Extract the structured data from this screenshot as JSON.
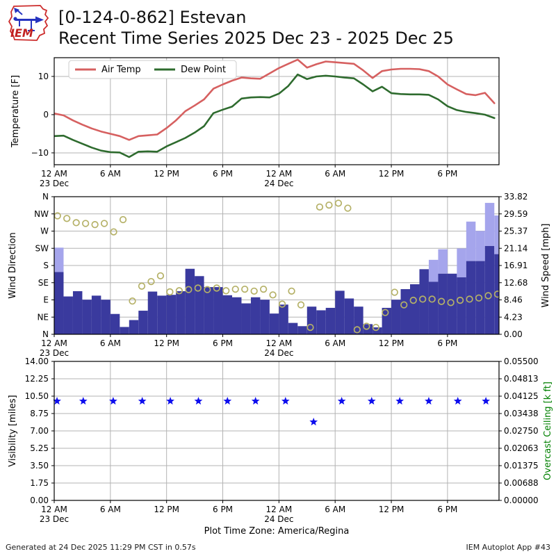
{
  "header": {
    "title_line1": "[0-124-0-862] Estevan",
    "title_line2": "Recent Time Series 2025 Dec 23 - 2025 Dec 25",
    "logo_text": "IEM"
  },
  "meta": {
    "generated": "Generated at 24 Dec 2025 11:29 PM CST in 0.57s",
    "app": "IEM Autoplot App #43"
  },
  "style": {
    "text": "#000000",
    "grid": "#b3b3b3",
    "spine": "#000000",
    "air_temp": "#d66060",
    "dew_point": "#2e6b2e",
    "bar": "#3a3a9e",
    "gust": "#a5a5ec",
    "dir_dot": "#b5b167",
    "star": "#0d0dee",
    "ceiling_label": "#008000",
    "legend_border": "#cccccc"
  },
  "time_axis": {
    "hours_span": 47.5,
    "tick_hours": [
      0,
      6,
      12,
      18,
      24,
      30,
      36,
      42
    ],
    "tick_labels": [
      "12 AM",
      "6 AM",
      "12 PM",
      "6 PM",
      "12 AM",
      "6 AM",
      "12 PM",
      "6 PM"
    ],
    "date_labels": [
      {
        "hour": 0,
        "label": "23 Dec"
      },
      {
        "hour": 24,
        "label": "24 Dec"
      }
    ],
    "xlabel": "Plot Time Zone: America/Regina"
  },
  "chart_data": [
    {
      "type": "line",
      "ylabel": "Temperature [F]",
      "ylim": [
        -13.1,
        14.9
      ],
      "yticks": [
        {
          "v": 10,
          "label": "10"
        },
        {
          "v": 0,
          "label": "0"
        },
        {
          "v": -10,
          "label": "−10"
        }
      ],
      "legend_position": "top-left",
      "series": [
        {
          "name": "Air Temp",
          "color_key": "air_temp",
          "values": [
            0.3,
            -0.2,
            -1.5,
            -2.6,
            -3.6,
            -4.4,
            -5.0,
            -5.6,
            -6.6,
            -5.6,
            -5.4,
            -5.2,
            -3.5,
            -1.5,
            0.9,
            2.4,
            4.0,
            6.8,
            7.9,
            8.9,
            9.7,
            9.5,
            9.4,
            10.8,
            12.2,
            13.3,
            14.4,
            12.3,
            13.2,
            13.9,
            13.7,
            13.5,
            13.3,
            11.6,
            9.6,
            11.4,
            11.8,
            12.0,
            12.0,
            11.9,
            11.4,
            10.0,
            7.9,
            6.6,
            5.4,
            5.1,
            5.7,
            3.0
          ]
        },
        {
          "name": "Dew Point",
          "color_key": "dew_point",
          "values": [
            -5.6,
            -5.5,
            -6.6,
            -7.6,
            -8.6,
            -9.4,
            -9.8,
            -9.9,
            -11.1,
            -9.7,
            -9.6,
            -9.7,
            -8.3,
            -7.2,
            -6.1,
            -4.7,
            -3.0,
            0.4,
            1.3,
            2.1,
            4.2,
            4.5,
            4.6,
            4.5,
            5.5,
            7.5,
            10.5,
            9.3,
            10.0,
            10.2,
            10.0,
            9.7,
            9.5,
            7.9,
            6.1,
            7.3,
            5.6,
            5.4,
            5.3,
            5.3,
            5.2,
            4.0,
            2.2,
            1.2,
            0.7,
            0.4,
            0.0,
            -0.9
          ]
        }
      ]
    },
    {
      "type": "bar",
      "ylabel_left": "Wind Direction",
      "ylabel_right": "Wind Speed [mph]",
      "dir_ticks": [
        "N",
        "NW",
        "W",
        "SW",
        "S",
        "SE",
        "E",
        "NE",
        "N"
      ],
      "speed_ticks": [
        "33.82",
        "29.59",
        "25.37",
        "21.14",
        "16.91",
        "12.68",
        "8.46",
        "4.23",
        "0.00"
      ],
      "speed_max": 33.82,
      "wind_speed_mph": [
        15.3,
        9.3,
        10.6,
        8.5,
        9.5,
        8.5,
        5.0,
        1.8,
        3.5,
        5.8,
        10.5,
        9.5,
        9.7,
        10.6,
        16.1,
        14.3,
        11.6,
        11.6,
        9.6,
        9.1,
        7.6,
        9.1,
        8.5,
        5.1,
        7.3,
        2.8,
        2.0,
        6.8,
        5.9,
        6.5,
        10.7,
        8.8,
        6.8,
        2.5,
        1.7,
        6.5,
        8.5,
        11.1,
        12.3,
        16.0,
        12.9,
        14.9,
        14.9,
        14.0,
        18.0,
        18.0,
        21.7,
        19.7
      ],
      "wind_gust_mph": [
        21.3,
        null,
        null,
        null,
        null,
        null,
        null,
        null,
        null,
        null,
        null,
        null,
        null,
        null,
        null,
        null,
        null,
        null,
        null,
        null,
        null,
        null,
        null,
        null,
        null,
        null,
        null,
        null,
        null,
        null,
        null,
        null,
        null,
        null,
        null,
        null,
        null,
        null,
        null,
        null,
        18.3,
        20.9,
        null,
        21.1,
        27.7,
        25.4,
        32.3,
        29.2
      ],
      "wind_dir_deg": [
        310,
        303,
        292,
        290,
        287,
        290,
        268,
        300,
        87,
        126,
        138,
        153,
        111,
        114,
        117,
        121,
        117,
        121,
        114,
        118,
        118,
        113,
        118,
        103,
        79,
        113,
        77,
        18,
        333,
        338,
        343,
        330,
        12,
        21,
        18,
        57,
        110,
        77,
        89,
        92,
        92,
        86,
        83,
        89,
        92,
        95,
        101,
        105
      ]
    },
    {
      "type": "scatter",
      "ylabel_left": "Visibility [miles]",
      "ylabel_right": "Overcast Ceiling [k ft]",
      "marker": "star",
      "ylim_left": [
        0,
        14
      ],
      "left_ticks": [
        "14.00",
        "12.25",
        "10.50",
        "8.75",
        "7.00",
        "5.25",
        "3.50",
        "1.75",
        "0.00"
      ],
      "right_ticks": [
        "0.05500",
        "0.04813",
        "0.04125",
        "0.03438",
        "0.02750",
        "0.02063",
        "0.01375",
        "0.00688",
        "0.00000"
      ],
      "visibility_points": {
        "hours": [
          0.3,
          3.1,
          6.3,
          9.4,
          12.4,
          15.4,
          18.5,
          21.5,
          24.7,
          27.7,
          30.7,
          33.9,
          36.9,
          40.0,
          43.1,
          46.1
        ],
        "miles": [
          10,
          10,
          10,
          10,
          10,
          10,
          10,
          10,
          10,
          7.9,
          10,
          10,
          10,
          10,
          10,
          10
        ]
      }
    }
  ]
}
